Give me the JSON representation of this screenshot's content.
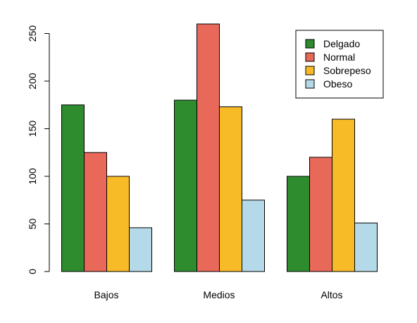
{
  "chart_data": {
    "type": "bar",
    "barmode": "grouped",
    "categories": [
      "Bajos",
      "Medios",
      "Altos"
    ],
    "series": [
      {
        "name": "Delgado",
        "color": "#2e8b2e",
        "values": [
          175,
          180,
          100
        ]
      },
      {
        "name": "Normal",
        "color": "#e8685a",
        "values": [
          125,
          260,
          120
        ]
      },
      {
        "name": "Sobrepeso",
        "color": "#f8bb28",
        "values": [
          100,
          173,
          160
        ]
      },
      {
        "name": "Obeso",
        "color": "#b4d9e8",
        "values": [
          46,
          75,
          51
        ]
      }
    ],
    "title": "",
    "xlabel": "",
    "ylabel": "",
    "ylim": [
      0,
      260
    ],
    "yticks": [
      0,
      50,
      100,
      150,
      200,
      250
    ],
    "grid": false,
    "legend_position": "top-right"
  }
}
